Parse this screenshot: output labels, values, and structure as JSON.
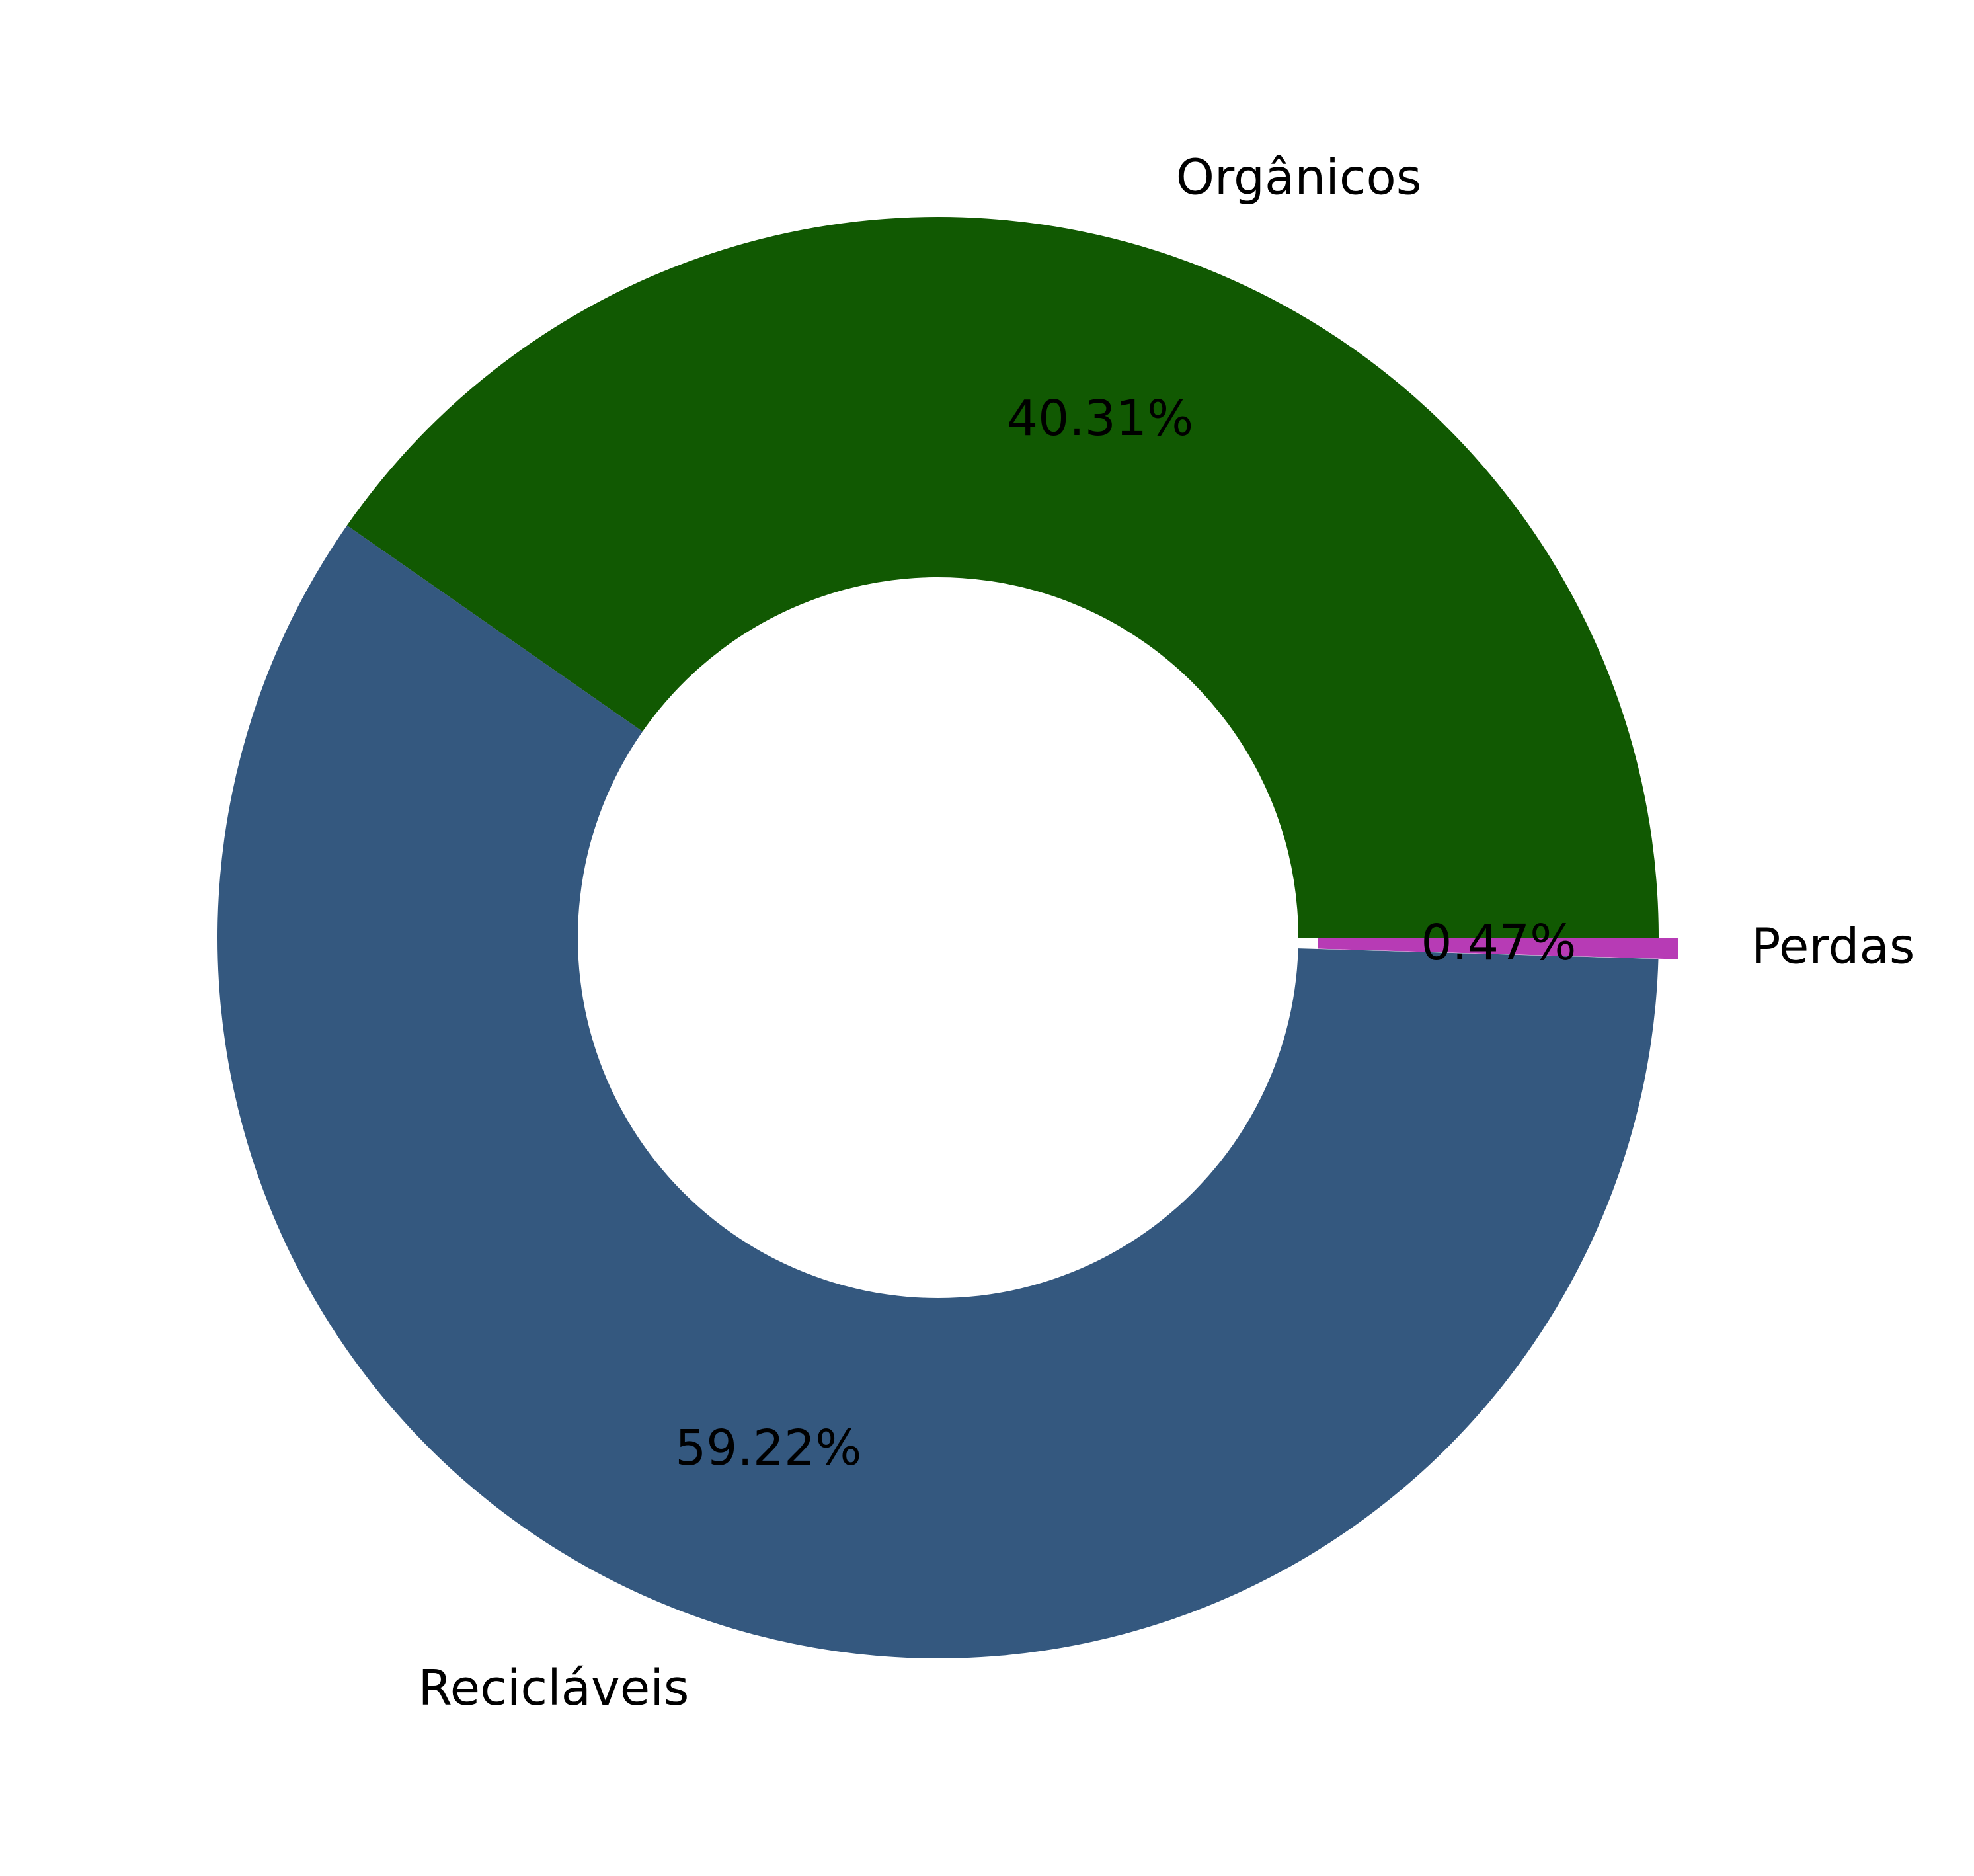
{
  "chart_data": {
    "type": "pie",
    "style": "donut",
    "start_angle_deg": 0,
    "direction": "counterclockwise",
    "slices": [
      {
        "name": "Orgânicos",
        "value": 40.31,
        "label": "40.31%",
        "color": "#115902",
        "explode": false
      },
      {
        "name": "Recicláveis",
        "value": 59.22,
        "label": "59.22%",
        "color": "#34587f",
        "explode": false
      },
      {
        "name": "Perdas",
        "value": 0.47,
        "label": "0.47%",
        "color": "#b73bb5",
        "explode": true
      }
    ]
  }
}
